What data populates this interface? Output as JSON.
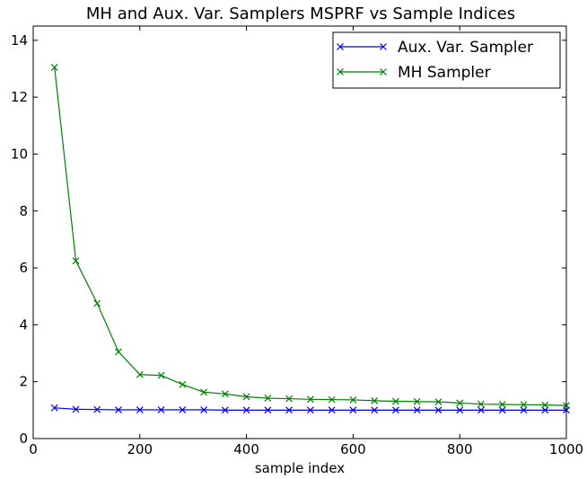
{
  "chart_data": {
    "type": "line",
    "title": "MH and Aux. Var. Samplers MSPRF vs Sample Indices",
    "xlabel": "sample index",
    "ylabel": "",
    "xlim": [
      0,
      1000
    ],
    "ylim": [
      0,
      14.5
    ],
    "xticks": [
      0,
      200,
      400,
      600,
      800,
      1000
    ],
    "yticks": [
      0,
      2,
      4,
      6,
      8,
      10,
      12,
      14
    ],
    "grid": false,
    "legend_position": "top-right",
    "x": [
      40,
      80,
      120,
      160,
      200,
      240,
      280,
      320,
      360,
      400,
      440,
      480,
      520,
      560,
      600,
      640,
      680,
      720,
      760,
      800,
      840,
      880,
      920,
      960,
      1000
    ],
    "series": [
      {
        "name": "Aux. Var. Sampler",
        "color": "#0000ff",
        "marker": "x",
        "values": [
          1.08,
          1.03,
          1.02,
          1.01,
          1.01,
          1.01,
          1.01,
          1.01,
          1.0,
          1.0,
          1.0,
          1.0,
          1.0,
          1.0,
          1.0,
          1.0,
          1.0,
          1.0,
          1.0,
          1.0,
          1.0,
          1.0,
          1.0,
          1.0,
          1.0
        ]
      },
      {
        "name": "MH Sampler",
        "color": "#008000",
        "marker": "x",
        "values": [
          13.05,
          6.25,
          4.75,
          3.05,
          2.25,
          2.22,
          1.9,
          1.63,
          1.57,
          1.47,
          1.42,
          1.4,
          1.38,
          1.37,
          1.36,
          1.33,
          1.31,
          1.3,
          1.29,
          1.25,
          1.21,
          1.2,
          1.19,
          1.18,
          1.16
        ]
      }
    ]
  }
}
